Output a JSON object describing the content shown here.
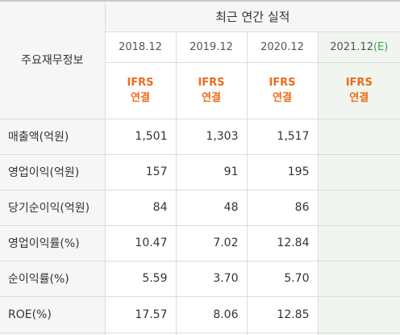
{
  "table": {
    "corner_label": "주요재무정보",
    "group_label": "최근 연간 실적",
    "periods": [
      {
        "label": "2018.12",
        "estimate_mark": ""
      },
      {
        "label": "2019.12",
        "estimate_mark": ""
      },
      {
        "label": "2020.12",
        "estimate_mark": ""
      },
      {
        "label": "2021.12",
        "estimate_mark": "(E)"
      }
    ],
    "basis": [
      {
        "line1": "IFRS",
        "line2": "연결"
      },
      {
        "line1": "IFRS",
        "line2": "연결"
      },
      {
        "line1": "IFRS",
        "line2": "연결"
      },
      {
        "line1": "IFRS",
        "line2": "연결"
      }
    ],
    "rows": [
      {
        "label": "매출액(억원)",
        "values": [
          "1,501",
          "1,303",
          "1,517",
          ""
        ]
      },
      {
        "label": "영업이익(억원)",
        "values": [
          "157",
          "91",
          "195",
          ""
        ]
      },
      {
        "label": "당기순이익(억원)",
        "values": [
          "84",
          "48",
          "86",
          ""
        ]
      },
      {
        "label": "영업이익률(%)",
        "values": [
          "10.47",
          "7.02",
          "12.84",
          ""
        ]
      },
      {
        "label": "순이익률(%)",
        "values": [
          "5.59",
          "3.70",
          "5.70",
          ""
        ]
      },
      {
        "label": "ROE(%)",
        "values": [
          "17.57",
          "8.06",
          "12.85",
          ""
        ]
      }
    ]
  },
  "colors": {
    "ifrs_orange": "#ee6b1b",
    "estimate_green": "#3ea14b",
    "estimate_column_bg": "#f0f6ef",
    "header_bg": "#f6f6f6"
  }
}
